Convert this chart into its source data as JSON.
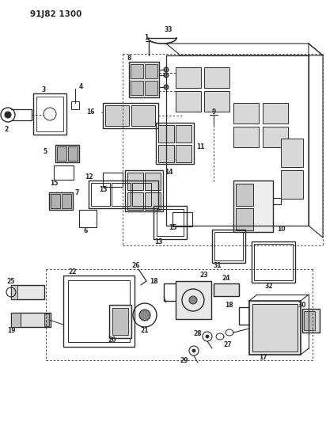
{
  "title": "91J82 1300",
  "bg": "#ffffff",
  "lc": "#2a2a2a",
  "fig_w": 4.12,
  "fig_h": 5.33,
  "dpi": 100
}
